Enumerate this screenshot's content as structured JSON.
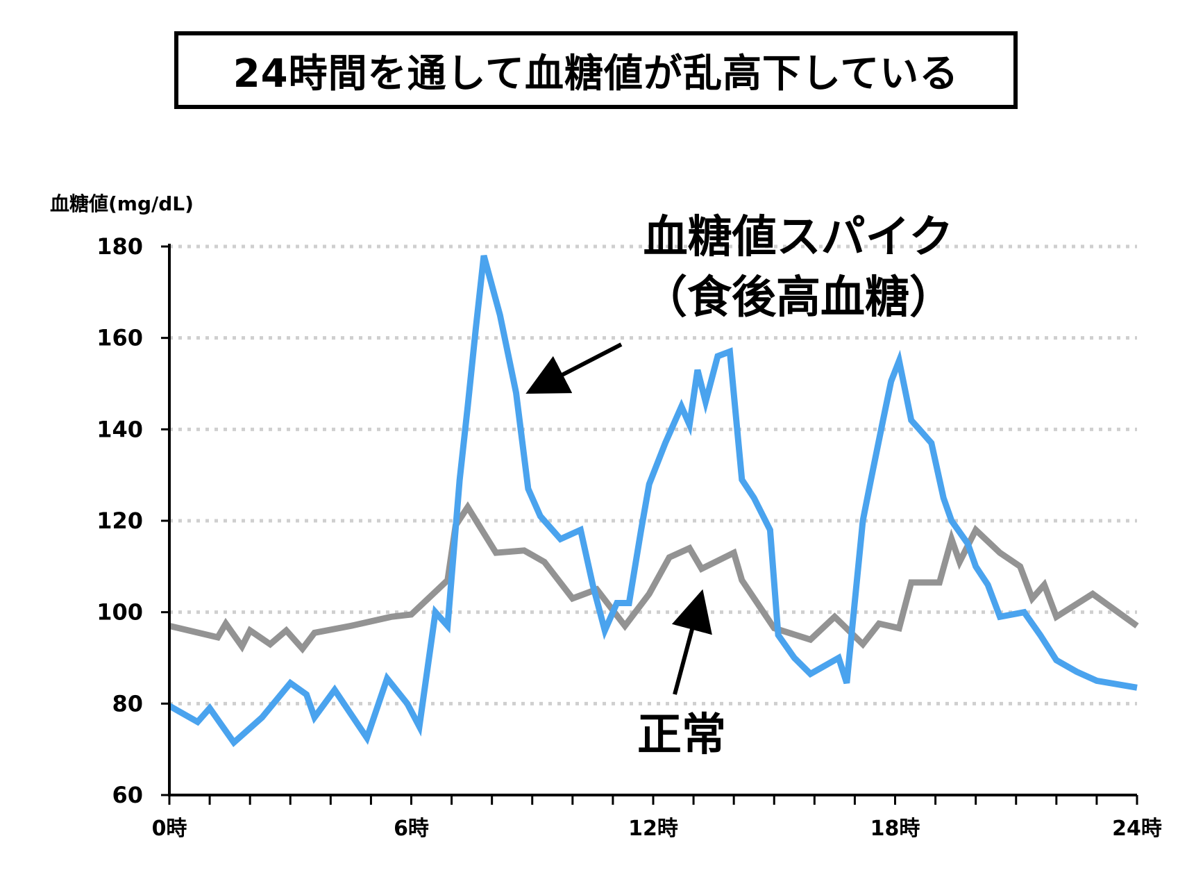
{
  "title": "24時間を通して血糖値が乱高下している",
  "chart_data": {
    "type": "line",
    "ylabel": "血糖値(mg/dL)",
    "ylim": [
      60,
      180
    ],
    "yticks": [
      60,
      80,
      100,
      120,
      140,
      160,
      180
    ],
    "xlim": [
      0,
      24
    ],
    "xticks": [
      {
        "value": 0,
        "label": "0時"
      },
      {
        "value": 6,
        "label": "6時"
      },
      {
        "value": 12,
        "label": "12時"
      },
      {
        "value": 18,
        "label": "18時"
      },
      {
        "value": 24,
        "label": "24時"
      }
    ],
    "grid": "horizontal dotted",
    "series": [
      {
        "name": "正常",
        "color": "#939393",
        "x": [
          0,
          1.2,
          1.4,
          1.8,
          2.0,
          2.5,
          2.9,
          3.3,
          3.6,
          4.5,
          5.5,
          6.0,
          6.9,
          7.1,
          7.4,
          8.1,
          8.8,
          9.3,
          10.0,
          10.6,
          11.3,
          11.9,
          12.4,
          12.9,
          13.2,
          14.0,
          14.2,
          15.0,
          15.9,
          16.5,
          17.2,
          17.6,
          18.1,
          18.4,
          19.1,
          19.4,
          19.6,
          20.0,
          20.6,
          21.1,
          21.4,
          21.7,
          22.0,
          22.9,
          24.0
        ],
        "values": [
          97,
          94.5,
          97.5,
          92.5,
          96,
          93,
          96,
          92,
          95.5,
          97,
          99,
          99.5,
          107,
          119,
          123,
          113,
          113.5,
          111,
          103,
          105,
          97,
          104,
          112,
          114,
          109.5,
          113,
          107,
          96.5,
          94,
          99,
          93,
          97.5,
          96.5,
          106.5,
          106.5,
          116,
          111,
          118,
          113,
          110,
          103,
          106,
          99,
          104,
          97
        ]
      },
      {
        "name": "血糖値スパイク",
        "color": "#4aa3ee",
        "x": [
          0,
          0.7,
          1.0,
          1.6,
          2.3,
          3.0,
          3.4,
          3.6,
          4.1,
          4.9,
          5.4,
          5.9,
          6.2,
          6.6,
          6.9,
          7.2,
          7.4,
          7.6,
          7.8,
          8.2,
          8.6,
          8.9,
          9.2,
          9.7,
          10.2,
          10.5,
          10.8,
          11.1,
          11.4,
          11.7,
          11.9,
          12.3,
          12.7,
          12.9,
          13.1,
          13.3,
          13.6,
          13.9,
          14.2,
          14.5,
          14.9,
          15.1,
          15.5,
          15.9,
          16.2,
          16.6,
          16.8,
          17.2,
          17.4,
          17.7,
          17.9,
          18.1,
          18.4,
          18.6,
          18.9,
          19.2,
          19.4,
          19.8,
          20.0,
          20.3,
          20.6,
          21.2,
          21.6,
          22.0,
          22.5,
          23.0,
          24.0
        ],
        "values": [
          79.5,
          76,
          79,
          71.5,
          77,
          84.5,
          82,
          77,
          83,
          72.5,
          85.5,
          80,
          75,
          100,
          97,
          129,
          145,
          162,
          178,
          165,
          148,
          127,
          121,
          116,
          118,
          106,
          96,
          102,
          102,
          118,
          128,
          137,
          145,
          141,
          153,
          146,
          156,
          157,
          129,
          125,
          118,
          95,
          90,
          86.5,
          88,
          90,
          84.5,
          120,
          129,
          142,
          150.5,
          155,
          142,
          140,
          137,
          125,
          120,
          115,
          110,
          106,
          99,
          100,
          95,
          89.5,
          87,
          85,
          83.5
        ]
      }
    ],
    "annotations": [
      {
        "line1": "血糖値スパイク",
        "line2": "（食後高血糖）"
      },
      {
        "line1": "正常"
      }
    ]
  }
}
